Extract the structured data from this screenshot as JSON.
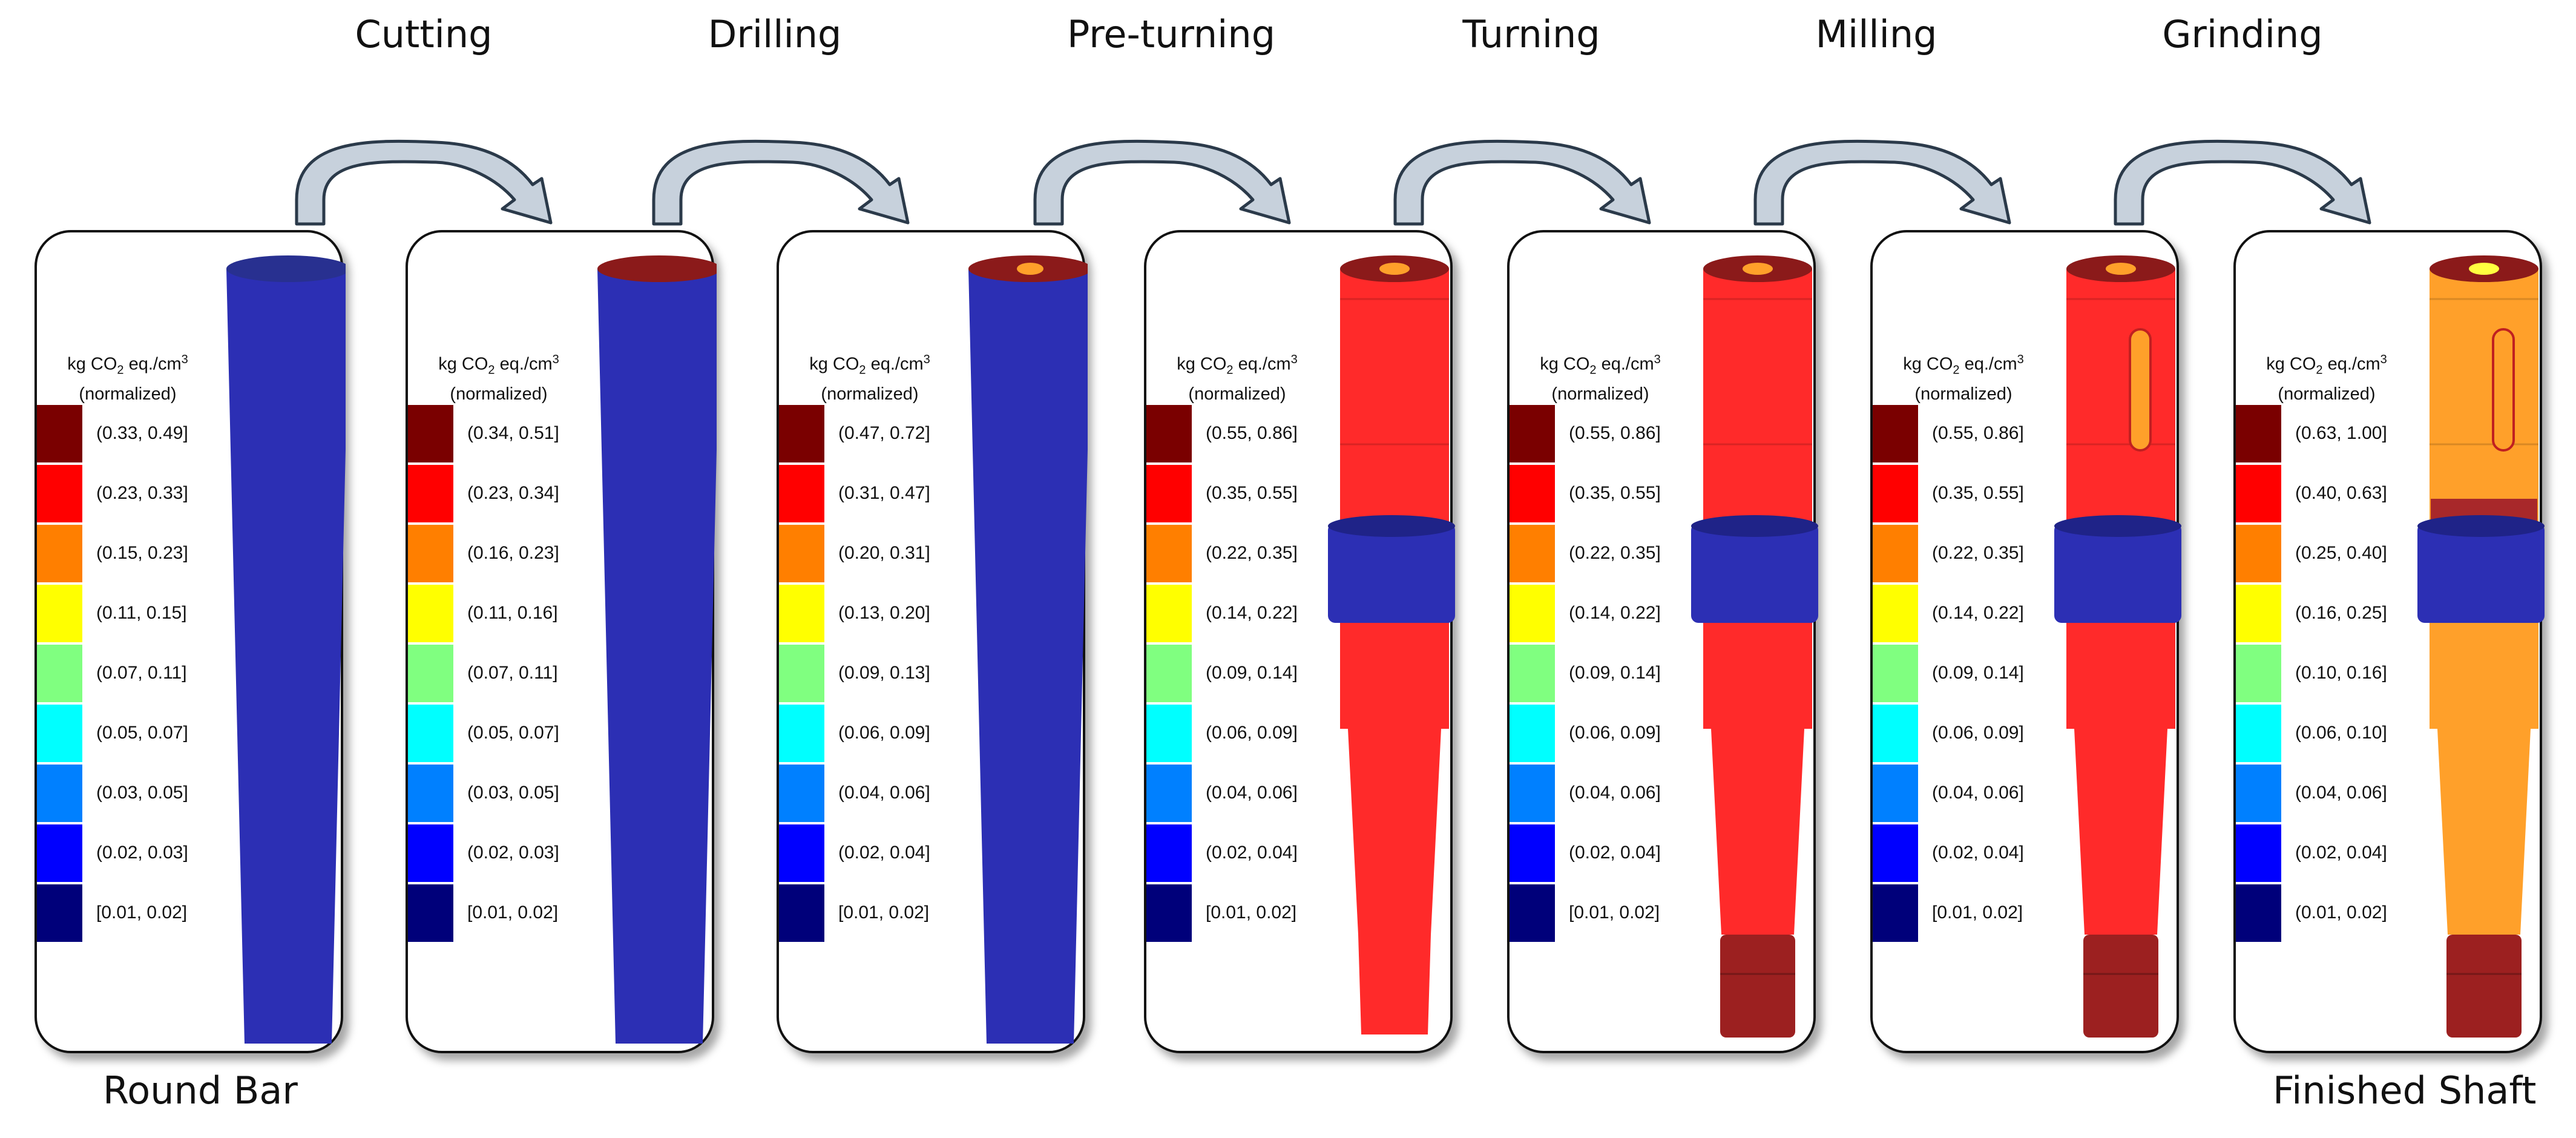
{
  "title": "",
  "steps": [
    "Cutting",
    "Drilling",
    "Pre-turning",
    "Turning",
    "Milling",
    "Grinding"
  ],
  "start_label": "Round Bar",
  "end_label": "Finished Shaft",
  "legend_title_line1_prefix": "kg CO",
  "legend_title_subscript": "2",
  "legend_title_line1_mid": " eq./cm",
  "legend_title_superscript": "3",
  "legend_title_line2": "(normalized)",
  "legend_colors": [
    "#7a0000",
    "#ff0000",
    "#ff7f00",
    "#ffff00",
    "#80ff80",
    "#00ffff",
    "#0080ff",
    "#0000ff",
    "#00007a"
  ],
  "colors": {
    "arrow_fill": "#c7d1dc",
    "arrow_stroke": "#2b3a4a",
    "blue": "#2c2fb4",
    "red": "#ff2a2a",
    "dark_red": "#8b1a1a",
    "orange": "#ffa02a"
  },
  "panels": [
    {
      "ranges": [
        "(0.33, 0.49]",
        "(0.23, 0.33]",
        "(0.15, 0.23]",
        "(0.11, 0.15]",
        "(0.07, 0.11]",
        "(0.05, 0.07]",
        "(0.03, 0.05]",
        "(0.02, 0.03]",
        "[0.01, 0.02]"
      ]
    },
    {
      "ranges": [
        "(0.34, 0.51]",
        "(0.23, 0.34]",
        "(0.16, 0.23]",
        "(0.11, 0.16]",
        "(0.07, 0.11]",
        "(0.05, 0.07]",
        "(0.03, 0.05]",
        "(0.02, 0.03]",
        "[0.01, 0.02]"
      ]
    },
    {
      "ranges": [
        "(0.47, 0.72]",
        "(0.31, 0.47]",
        "(0.20, 0.31]",
        "(0.13, 0.20]",
        "(0.09, 0.13]",
        "(0.06, 0.09]",
        "(0.04, 0.06]",
        "(0.02, 0.04]",
        "[0.01, 0.02]"
      ]
    },
    {
      "ranges": [
        "(0.55, 0.86]",
        "(0.35, 0.55]",
        "(0.22, 0.35]",
        "(0.14, 0.22]",
        "(0.09, 0.14]",
        "(0.06, 0.09]",
        "(0.04, 0.06]",
        "(0.02, 0.04]",
        "[0.01, 0.02]"
      ]
    },
    {
      "ranges": [
        "(0.55, 0.86]",
        "(0.35, 0.55]",
        "(0.22, 0.35]",
        "(0.14, 0.22]",
        "(0.09, 0.14]",
        "(0.06, 0.09]",
        "(0.04, 0.06]",
        "(0.02, 0.04]",
        "[0.01, 0.02]"
      ]
    },
    {
      "ranges": [
        "(0.55, 0.86]",
        "(0.35, 0.55]",
        "(0.22, 0.35]",
        "(0.14, 0.22]",
        "(0.09, 0.14]",
        "(0.06, 0.09]",
        "(0.04, 0.06]",
        "(0.02, 0.04]",
        "[0.01, 0.02]"
      ]
    },
    {
      "ranges": [
        "(0.63, 1.00]",
        "(0.40, 0.63]",
        "(0.25, 0.40]",
        "(0.16, 0.25]",
        "(0.10, 0.16]",
        "(0.06, 0.10]",
        "(0.04, 0.06]",
        "(0.02, 0.04]",
        "(0.01, 0.02]"
      ]
    }
  ]
}
